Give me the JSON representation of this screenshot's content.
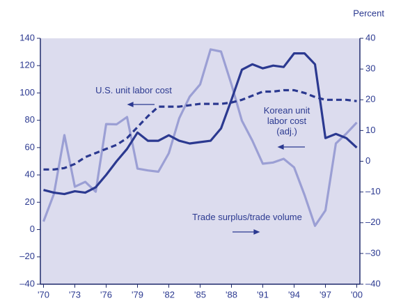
{
  "chart_data": {
    "type": "line",
    "y2label": "Percent",
    "x": [
      1970,
      1971,
      1972,
      1973,
      1974,
      1975,
      1976,
      1977,
      1978,
      1979,
      1980,
      1981,
      1982,
      1983,
      1984,
      1985,
      1986,
      1987,
      1988,
      1989,
      1990,
      1991,
      1992,
      1993,
      1994,
      1995,
      1996,
      1997,
      1998,
      1999,
      2000
    ],
    "xlim": [
      1969.7,
      2000.3
    ],
    "xticks": [
      {
        "value": 1970,
        "label": "'70"
      },
      {
        "value": 1973,
        "label": "'73"
      },
      {
        "value": 1976,
        "label": "'76"
      },
      {
        "value": 1979,
        "label": "'79"
      },
      {
        "value": 1982,
        "label": "'82"
      },
      {
        "value": 1985,
        "label": "'85"
      },
      {
        "value": 1988,
        "label": "'88"
      },
      {
        "value": 1991,
        "label": "'91"
      },
      {
        "value": 1994,
        "label": "'94"
      },
      {
        "value": 1997,
        "label": "'97"
      },
      {
        "value": 2000,
        "label": "'00"
      }
    ],
    "ylim": [
      -40,
      140
    ],
    "yticks": [
      {
        "value": -40,
        "label": "–40"
      },
      {
        "value": -20,
        "label": "–20"
      },
      0,
      20,
      40,
      60,
      80,
      100,
      120,
      140
    ],
    "y2lim": [
      -40,
      40
    ],
    "y2ticks": [
      {
        "value": -40,
        "label": "–40"
      },
      {
        "value": -30,
        "label": "–30"
      },
      {
        "value": -20,
        "label": "–20"
      },
      {
        "value": -10,
        "label": "–10"
      },
      0,
      10,
      20,
      30,
      40
    ],
    "grid": false,
    "series": [
      {
        "name": "Korean unit labor cost (adj.)",
        "color": "#2b3990",
        "dash": false,
        "axis": "y",
        "values": [
          29,
          27,
          26,
          28,
          27,
          31,
          40,
          50,
          59,
          71,
          65,
          65,
          69,
          65,
          63,
          64,
          65,
          74,
          95,
          117,
          121,
          118,
          120,
          119,
          129,
          129,
          121,
          67,
          70,
          67,
          60
        ]
      },
      {
        "name": "U.S. unit labor cost",
        "color": "#2b3990",
        "dash": true,
        "axis": "y",
        "values": [
          44,
          44,
          45,
          48,
          53,
          56,
          59,
          62,
          67,
          75,
          83,
          90,
          90,
          90,
          91,
          92,
          92,
          92,
          93,
          95,
          98,
          101,
          101,
          102,
          102,
          100,
          97,
          95,
          95,
          95,
          94
        ]
      },
      {
        "name": "Trade surplus/trade volume",
        "color": "#9b9fd4",
        "dash": false,
        "axis": "y2",
        "values": [
          -19.6,
          -10.6,
          8.5,
          -8.3,
          -6.7,
          -9.9,
          12.1,
          12,
          14.4,
          -2.4,
          -3,
          -3.4,
          2.6,
          14,
          21,
          25,
          36.4,
          35.7,
          25,
          13.2,
          6.7,
          -0.8,
          -0.4,
          0.8,
          -2,
          -11,
          -21,
          -16,
          5.8,
          9,
          12.6
        ]
      }
    ]
  }
}
